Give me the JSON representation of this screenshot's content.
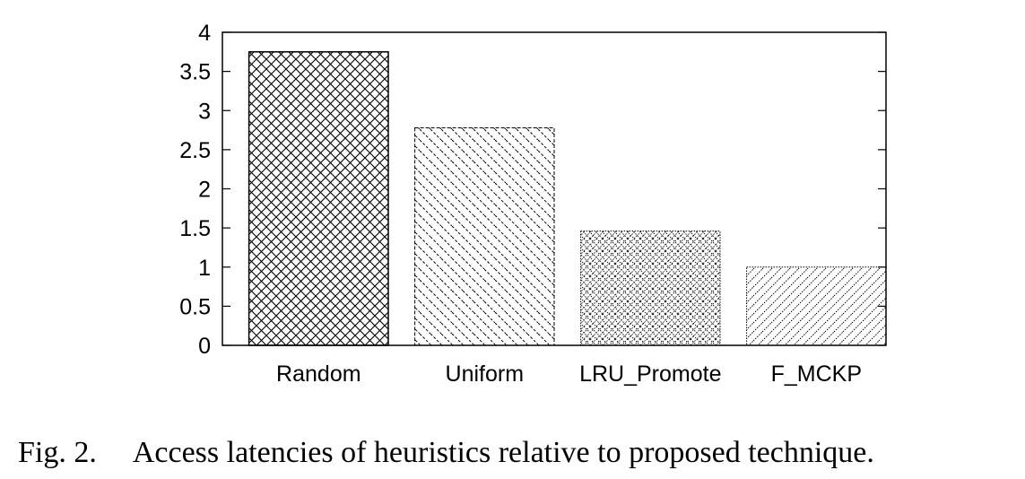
{
  "chart_data": {
    "type": "bar",
    "categories": [
      "Random",
      "Uniform",
      "LRU_Promote",
      "F_MCKP"
    ],
    "values": [
      3.75,
      2.78,
      1.46,
      1.0
    ],
    "ylim": [
      0,
      4
    ],
    "yticks": [
      "0",
      "0.5",
      "1",
      "1.5",
      "2",
      "2.5",
      "3",
      "3.5",
      "4"
    ],
    "xlabel": "",
    "ylabel": "",
    "grid": false,
    "patterns": [
      "crosshatch",
      "diagonal-dashed",
      "dotted-diamond",
      "diagonal-dotted"
    ]
  },
  "caption": {
    "fig_num": "Fig. 2.",
    "text": "Access latencies of heuristics relative to proposed technique."
  }
}
